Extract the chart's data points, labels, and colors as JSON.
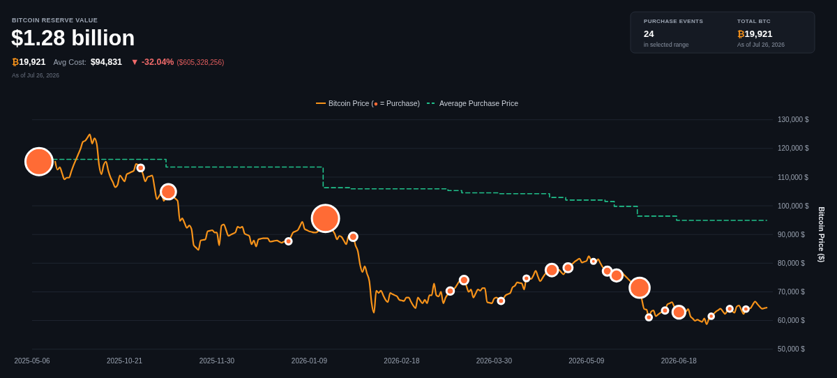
{
  "chart_data": [
    {
      "type": "other",
      "title": "BITCOIN RESERVE VALUE",
      "subtitle": "$1.28 billion",
      "annotations": [
        "₿19,921",
        "Avg Cost:",
        "$94,831",
        "▼ -32.04%",
        "($605,328,256)",
        "As of Jul 26, 2026"
      ]
    },
    {
      "type": "other",
      "annotations": [
        "PURCHASE EVENTS",
        "24",
        "in selected range",
        "TOTAL BTC",
        "₿19,921",
        "As of Jul 26, 2026"
      ]
    },
    {
      "type": "line",
      "ylabel": "Bitcoin Price ($)",
      "legend": "top",
      "grid": "y",
      "categories": [
        "2025-05-06",
        null,
        null,
        null,
        null,
        null,
        null,
        null,
        null,
        null,
        null,
        null,
        null,
        null,
        null,
        null,
        null,
        null,
        null,
        null,
        null,
        null,
        null,
        null,
        null,
        null,
        null,
        null,
        null,
        null,
        null,
        null,
        null,
        null,
        null,
        null,
        null,
        null,
        null,
        null,
        "2025-10-21",
        null,
        null,
        null,
        null,
        null,
        null,
        null,
        null,
        null,
        null,
        null,
        null,
        null,
        null,
        null,
        null,
        null,
        null,
        null,
        null,
        null,
        null,
        null,
        null,
        null,
        null,
        null,
        null,
        null,
        null,
        null,
        null,
        null,
        null,
        null,
        null,
        null,
        null,
        null,
        "2025-11-30",
        null,
        null,
        null,
        null,
        null,
        null,
        null,
        null,
        null,
        null,
        null,
        null,
        null,
        null,
        null,
        null,
        null,
        null,
        null,
        null,
        null,
        null,
        null,
        null,
        null,
        null,
        null,
        null,
        null,
        null,
        null,
        null,
        null,
        null,
        null,
        null,
        null,
        null,
        null,
        "2026-01-09",
        null,
        null,
        null,
        null,
        null,
        null,
        null,
        null,
        null,
        null,
        null,
        null,
        null,
        null,
        null,
        null,
        null,
        null,
        null,
        null,
        null,
        null,
        null,
        null,
        null,
        null,
        null,
        null,
        null,
        null,
        null,
        null,
        null,
        null,
        null,
        null,
        null,
        null,
        null,
        "2026-02-18",
        null,
        null,
        null,
        null,
        null,
        null,
        null,
        null,
        null,
        null,
        null,
        null,
        null,
        null,
        null,
        null,
        null,
        null,
        null,
        null,
        null,
        null,
        null,
        null,
        null,
        null,
        null,
        null,
        null,
        null,
        null,
        null,
        null,
        null,
        null,
        null,
        null,
        null,
        null,
        "2026-03-30",
        null,
        null,
        null,
        null,
        null,
        null,
        null,
        null,
        null,
        null,
        null,
        null,
        null,
        null,
        null,
        null,
        null,
        null,
        null,
        null,
        null,
        null,
        null,
        null,
        null,
        null,
        null,
        null,
        null,
        null,
        null,
        null,
        null,
        null,
        null,
        null,
        null,
        null,
        null,
        "2026-05-09",
        null,
        null,
        null,
        null,
        null,
        null,
        null,
        null,
        null,
        null,
        null,
        null,
        null,
        null,
        null,
        null,
        null,
        null,
        null,
        null,
        null,
        null,
        null,
        null,
        null,
        null,
        null,
        null,
        null,
        null,
        null,
        null,
        null,
        null,
        null,
        null,
        null,
        null,
        null,
        "2026-06-18",
        null,
        null,
        null,
        null,
        null,
        null,
        null,
        null,
        null,
        null,
        null,
        null,
        null,
        null,
        null,
        null,
        null,
        null,
        null,
        null,
        null,
        null,
        null,
        null,
        null,
        null,
        null,
        null,
        null,
        null,
        null,
        null,
        null,
        null,
        null,
        null,
        null,
        null
      ],
      "ylim": [
        50000,
        130000
      ],
      "yticks": [
        {
          "value": 50000,
          "label": "50,000 $"
        },
        {
          "value": 60000,
          "label": "60,000 $"
        },
        {
          "value": 70000,
          "label": "70,000 $"
        },
        {
          "value": 80000,
          "label": "80,000 $"
        },
        {
          "value": 90000,
          "label": "90,000 $"
        },
        {
          "value": 100000,
          "label": "100,000 $"
        },
        {
          "value": 110000,
          "label": "110,000 $"
        },
        {
          "value": 120000,
          "label": "120,000 $"
        },
        {
          "value": 130000,
          "label": "130,000 $"
        }
      ],
      "series": [
        {
          "name": "Bitcoin Price (● = Purchase)",
          "type": "line",
          "color": "#f7931a",
          "values": [
            null,
            null,
            null,
            null,
            null,
            null,
            null,
            null,
            null,
            null,
            115400,
            112600,
            113400,
            111300,
            109200,
            109800,
            109800,
            112000,
            114200,
            116100,
            118000,
            119900,
            122300,
            122700,
            123800,
            124900,
            121700,
            123500,
            121500,
            114200,
            111000,
            114200,
            115400,
            112200,
            109800,
            108200,
            106500,
            107300,
            110600,
            109600,
            108500,
            111000,
            111400,
            111800,
            112200,
            114600,
            114200,
            113200,
            111000,
            108500,
            110000,
            110300,
            110600,
            106500,
            102300,
            103400,
            104500,
            101700,
            103300,
            104900,
            104100,
            103300,
            102500,
            101700,
            94700,
            95600,
            94000,
            92300,
            93100,
            91900,
            86200,
            85400,
            84600,
            87900,
            88100,
            88300,
            91100,
            91300,
            91500,
            90700,
            90700,
            86200,
            93100,
            93500,
            91500,
            89500,
            89900,
            90300,
            90700,
            92700,
            92300,
            92700,
            90300,
            89900,
            89500,
            86600,
            87900,
            85800,
            88300,
            88500,
            88700,
            88700,
            88700,
            87500,
            87600,
            87800,
            87900,
            87500,
            87100,
            87500,
            87600,
            87600,
            89100,
            90700,
            91100,
            91500,
            93000,
            94400,
            91900,
            91500,
            91100,
            90900,
            90700,
            90700,
            91300,
            91900,
            93700,
            95600,
            94300,
            93000,
            91600,
            90300,
            88300,
            89500,
            89100,
            87800,
            86600,
            89500,
            89300,
            89200,
            86200,
            84200,
            79400,
            76900,
            78900,
            76300,
            73700,
            66000,
            62700,
            70400,
            69600,
            70400,
            68800,
            67200,
            66400,
            69600,
            69200,
            68800,
            68400,
            67200,
            67000,
            66800,
            68000,
            68000,
            66600,
            65200,
            64300,
            68000,
            67000,
            66000,
            67200,
            66000,
            68800,
            68800,
            72900,
            68800,
            68400,
            70000,
            66000,
            68000,
            69200,
            70300,
            70800,
            71300,
            72500,
            73700,
            73900,
            74100,
            72100,
            70000,
            70800,
            68000,
            69400,
            70800,
            70400,
            71300,
            71300,
            66400,
            66200,
            66000,
            67600,
            68000,
            67400,
            66800,
            67600,
            68800,
            69200,
            69600,
            71600,
            72100,
            73300,
            73100,
            72900,
            70800,
            74700,
            74600,
            74500,
            75700,
            77300,
            75300,
            73700,
            74900,
            76100,
            76900,
            77300,
            77600,
            77600,
            77700,
            77700,
            76900,
            76100,
            77300,
            78400,
            79100,
            79800,
            80600,
            81100,
            81600,
            80200,
            80500,
            80800,
            82400,
            81000,
            80600,
            80200,
            81400,
            80000,
            78600,
            77900,
            77200,
            77000,
            76900,
            76300,
            75700,
            76300,
            76900,
            76100,
            75300,
            74500,
            73700,
            73100,
            72500,
            72000,
            71400,
            67200,
            64000,
            63800,
            61100,
            63100,
            63500,
            61500,
            62100,
            62700,
            63100,
            63500,
            65600,
            66000,
            66400,
            64800,
            63900,
            62900,
            62900,
            63000,
            63100,
            64000,
            61500,
            60700,
            59900,
            60300,
            59900,
            59500,
            60700,
            58700,
            60600,
            61500,
            62300,
            63100,
            63600,
            64100,
            63200,
            62300,
            63500,
            64100,
            63400,
            62700,
            64800,
            65200,
            63800,
            62300,
            64000,
            64200,
            64300,
            65600,
            66600,
            65700,
            64800,
            64100,
            64300,
            64500
          ]
        },
        {
          "type": "bubble",
          "color": "#ff6b35",
          "values": [
            null,
            null,
            null,
            115400,
            null,
            null,
            null,
            null,
            null,
            null,
            null,
            null,
            null,
            null,
            null,
            null,
            null,
            null,
            null,
            null,
            null,
            null,
            null,
            null,
            null,
            null,
            null,
            null,
            null,
            null,
            null,
            null,
            null,
            null,
            null,
            null,
            null,
            null,
            null,
            null,
            null,
            null,
            null,
            null,
            null,
            null,
            null,
            113200,
            null,
            null,
            null,
            null,
            null,
            null,
            null,
            null,
            null,
            null,
            null,
            104900,
            null,
            null,
            null,
            null,
            null,
            null,
            null,
            null,
            null,
            null,
            null,
            null,
            null,
            null,
            null,
            null,
            null,
            null,
            null,
            null,
            null,
            null,
            null,
            null,
            null,
            null,
            null,
            null,
            null,
            null,
            null,
            null,
            null,
            null,
            null,
            null,
            null,
            null,
            null,
            null,
            null,
            null,
            null,
            null,
            null,
            null,
            null,
            null,
            null,
            null,
            null,
            87600,
            null,
            null,
            null,
            null,
            null,
            null,
            null,
            null,
            null,
            null,
            null,
            null,
            null,
            null,
            null,
            95600,
            null,
            null,
            null,
            null,
            null,
            null,
            null,
            null,
            null,
            null,
            null,
            89200,
            null,
            null,
            null,
            null,
            null,
            null,
            null,
            null,
            null,
            null,
            null,
            null,
            null,
            null,
            null,
            null,
            null,
            null,
            null,
            null,
            null,
            null,
            null,
            null,
            null,
            null,
            null,
            null,
            null,
            null,
            null,
            null,
            null,
            null,
            null,
            null,
            null,
            null,
            null,
            null,
            null,
            70300,
            null,
            null,
            null,
            null,
            null,
            74100,
            null,
            null,
            null,
            null,
            null,
            null,
            null,
            null,
            null,
            null,
            null,
            null,
            null,
            null,
            null,
            66800,
            null,
            null,
            null,
            null,
            null,
            null,
            null,
            null,
            null,
            null,
            74700,
            null,
            null,
            null,
            null,
            null,
            null,
            null,
            null,
            null,
            null,
            77600,
            null,
            null,
            null,
            null,
            null,
            null,
            78400,
            null,
            null,
            null,
            null,
            null,
            null,
            null,
            null,
            null,
            null,
            80600,
            null,
            null,
            null,
            null,
            null,
            77200,
            null,
            null,
            null,
            75700,
            null,
            null,
            null,
            null,
            null,
            null,
            null,
            null,
            null,
            71400,
            null,
            null,
            null,
            61100,
            null,
            null,
            null,
            null,
            null,
            null,
            63500,
            null,
            null,
            null,
            null,
            null,
            62900,
            null,
            null,
            null,
            null,
            null,
            null,
            null,
            null,
            null,
            null,
            null,
            null,
            null,
            61500,
            null,
            null,
            null,
            null,
            null,
            null,
            null,
            64100,
            null,
            null,
            null,
            null,
            null,
            null,
            64000,
            null,
            null,
            null,
            null,
            null,
            null,
            null,
            null,
            null
          ],
          "sizes": [
            null,
            null,
            null,
            1,
            null,
            null,
            null,
            null,
            null,
            null,
            null,
            null,
            null,
            null,
            null,
            null,
            null,
            null,
            null,
            null,
            null,
            null,
            null,
            null,
            null,
            null,
            null,
            null,
            null,
            null,
            null,
            null,
            null,
            null,
            null,
            null,
            null,
            null,
            null,
            null,
            null,
            null,
            null,
            null,
            null,
            null,
            null,
            0.061,
            null,
            null,
            null,
            null,
            null,
            null,
            null,
            null,
            null,
            null,
            null,
            0.31,
            null,
            null,
            null,
            null,
            null,
            null,
            null,
            null,
            null,
            null,
            null,
            null,
            null,
            null,
            null,
            null,
            null,
            null,
            null,
            null,
            null,
            null,
            null,
            null,
            null,
            null,
            null,
            null,
            null,
            null,
            null,
            null,
            null,
            null,
            null,
            null,
            null,
            null,
            null,
            null,
            null,
            null,
            null,
            null,
            null,
            null,
            null,
            null,
            null,
            null,
            null,
            0.053,
            null,
            null,
            null,
            null,
            null,
            null,
            null,
            null,
            null,
            null,
            null,
            null,
            null,
            null,
            null,
            1,
            null,
            null,
            null,
            null,
            null,
            null,
            null,
            null,
            null,
            null,
            null,
            0.095,
            null,
            null,
            null,
            null,
            null,
            null,
            null,
            null,
            null,
            null,
            null,
            null,
            null,
            null,
            null,
            null,
            null,
            null,
            null,
            null,
            null,
            null,
            null,
            null,
            null,
            null,
            null,
            null,
            null,
            null,
            null,
            null,
            null,
            null,
            null,
            null,
            null,
            null,
            null,
            null,
            null,
            0.074,
            null,
            null,
            null,
            null,
            null,
            0.1,
            null,
            null,
            null,
            null,
            null,
            null,
            null,
            null,
            null,
            null,
            null,
            null,
            null,
            null,
            null,
            0.053,
            null,
            null,
            null,
            null,
            null,
            null,
            null,
            null,
            null,
            null,
            0.046,
            null,
            null,
            null,
            null,
            null,
            null,
            null,
            null,
            null,
            null,
            0.21,
            null,
            null,
            null,
            null,
            null,
            null,
            0.11,
            null,
            null,
            null,
            null,
            null,
            null,
            null,
            null,
            null,
            null,
            0.032,
            null,
            null,
            null,
            null,
            null,
            0.11,
            null,
            null,
            null,
            0.2,
            null,
            null,
            null,
            null,
            null,
            null,
            null,
            null,
            null,
            0.54,
            null,
            null,
            null,
            0.049,
            null,
            null,
            null,
            null,
            null,
            null,
            0.053,
            null,
            null,
            null,
            null,
            null,
            0.22,
            null,
            null,
            null,
            null,
            null,
            null,
            null,
            null,
            null,
            null,
            null,
            null,
            null,
            0.038,
            null,
            null,
            null,
            null,
            null,
            null,
            null,
            0.046,
            null,
            null,
            null,
            null,
            null,
            null,
            0.042,
            null,
            null,
            null,
            null,
            null,
            null,
            null,
            null,
            null
          ]
        },
        {
          "name": "Average Purchase Price",
          "type": "step",
          "color": "#20c18b",
          "line_style": "dashed",
          "values": [
            null,
            null,
            null,
            null,
            null,
            null,
            null,
            null,
            null,
            116200,
            116200,
            116200,
            116200,
            116200,
            116200,
            116200,
            116200,
            116200,
            116200,
            116200,
            116200,
            116200,
            116200,
            116200,
            116200,
            116200,
            116200,
            116200,
            116200,
            116200,
            116200,
            116200,
            116200,
            116200,
            116200,
            116200,
            116200,
            116200,
            116200,
            116200,
            116200,
            116200,
            116200,
            116200,
            116200,
            116200,
            116200,
            116200,
            116200,
            116200,
            116200,
            116200,
            116200,
            116200,
            116200,
            116200,
            116200,
            116200,
            113500,
            113500,
            113500,
            113500,
            113500,
            113500,
            113500,
            113500,
            113500,
            113500,
            113500,
            113500,
            113500,
            113500,
            113500,
            113500,
            113500,
            113500,
            113500,
            113500,
            113500,
            113500,
            113500,
            113500,
            113500,
            113500,
            113500,
            113500,
            113500,
            113500,
            113500,
            113500,
            113500,
            113500,
            113500,
            113500,
            113500,
            113500,
            113500,
            113500,
            113500,
            113500,
            113500,
            113500,
            113500,
            113500,
            113500,
            113500,
            113500,
            113500,
            113500,
            113500,
            113500,
            113500,
            113500,
            113500,
            113500,
            113500,
            113500,
            113500,
            113500,
            113500,
            113500,
            113500,
            113500,
            113500,
            113500,
            113500,
            106300,
            106300,
            106300,
            106300,
            106300,
            106300,
            106300,
            106300,
            106300,
            106300,
            106300,
            106300,
            105900,
            105900,
            105900,
            105900,
            105900,
            105900,
            105900,
            105900,
            105900,
            105900,
            105900,
            105900,
            105900,
            105900,
            105900,
            105900,
            105900,
            105900,
            105900,
            105900,
            105900,
            105900,
            105900,
            105900,
            105900,
            105900,
            105900,
            105900,
            105900,
            105900,
            105900,
            105900,
            105900,
            105900,
            105900,
            105900,
            105900,
            105900,
            105900,
            105900,
            105900,
            105900,
            105300,
            105300,
            105300,
            105300,
            105300,
            105300,
            104500,
            104500,
            104500,
            104500,
            104500,
            104500,
            104500,
            104500,
            104500,
            104500,
            104500,
            104500,
            104500,
            104500,
            104500,
            104500,
            104200,
            104200,
            104200,
            104200,
            104200,
            104200,
            104200,
            104200,
            104200,
            104200,
            104200,
            104200,
            104200,
            104200,
            104200,
            104200,
            104200,
            104200,
            104200,
            104200,
            104200,
            104200,
            102900,
            102900,
            102900,
            102900,
            102900,
            102900,
            102900,
            102000,
            102000,
            102000,
            102000,
            102000,
            102000,
            102000,
            102000,
            102000,
            102000,
            102000,
            102000,
            102000,
            102000,
            102000,
            102000,
            102000,
            101500,
            101500,
            101500,
            101500,
            99800,
            99800,
            99800,
            99800,
            99800,
            99800,
            99800,
            99800,
            99800,
            99800,
            96400,
            96400,
            96400,
            96400,
            96400,
            96400,
            96400,
            96400,
            96400,
            96400,
            96400,
            96400,
            96400,
            96400,
            96400,
            96400,
            96400,
            94900,
            94900,
            94900,
            94900,
            94900,
            94900,
            94900,
            94900,
            94900,
            94900,
            94900,
            94900,
            94900,
            94900,
            94900,
            94900,
            94900,
            94900,
            94900,
            94900,
            94900,
            94900,
            94900,
            94900,
            94900,
            94900,
            94900,
            94900,
            94900,
            94900,
            94900,
            94900,
            94900,
            94900,
            94900,
            94900,
            94900,
            94900,
            94900,
            94900
          ]
        }
      ]
    }
  ]
}
